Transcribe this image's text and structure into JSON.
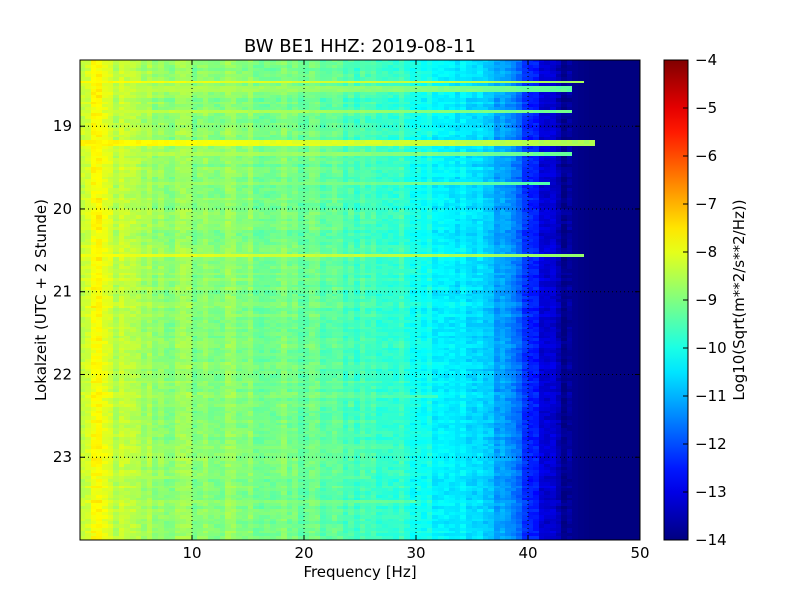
{
  "chart_data": {
    "type": "heatmap",
    "title": "BW BE1 HHZ: 2019-08-11",
    "xlabel": "Frequency [Hz]",
    "ylabel": "Lokalzeit (UTC + 2 Stunde)",
    "xlim": [
      0,
      50
    ],
    "ylim": [
      18.2,
      24.0
    ],
    "y_inverted": true,
    "x_ticks": [
      10,
      20,
      30,
      40,
      50
    ],
    "x_tick_labels": [
      "10",
      "20",
      "30",
      "40",
      "50"
    ],
    "y_ticks": [
      19,
      20,
      21,
      22,
      23
    ],
    "y_tick_labels": [
      "19",
      "20",
      "21",
      "22",
      "23"
    ],
    "grid": true,
    "colormap": "jet",
    "colorbar": {
      "label": "Log10(Sqrt(m**2/s**2/Hz))",
      "range": [
        -14,
        -4
      ],
      "ticks": [
        -4,
        -5,
        -6,
        -7,
        -8,
        -9,
        -10,
        -11,
        -12,
        -13,
        -14
      ],
      "tick_labels": [
        "−4",
        "−5",
        "−6",
        "−7",
        "−8",
        "−9",
        "−10",
        "−11",
        "−12",
        "−13",
        "−14"
      ]
    },
    "spectral_profile": {
      "frequency_hz": [
        0.5,
        1,
        2,
        3,
        5,
        8,
        12,
        16,
        20,
        25,
        30,
        33,
        35,
        37,
        38.5,
        40,
        41.5,
        43,
        44.5,
        46,
        50
      ],
      "level_log10": [
        -8.4,
        -7.8,
        -8.0,
        -8.3,
        -8.6,
        -8.8,
        -8.9,
        -9.0,
        -9.2,
        -9.5,
        -9.9,
        -10.3,
        -10.6,
        -10.9,
        -11.3,
        -12.3,
        -13.1,
        -13.6,
        -13.9,
        -14.0,
        -14.0
      ]
    },
    "narrowband_line": {
      "start": {
        "frequency_hz": 34.5,
        "time_h": 18.2
      },
      "end": {
        "frequency_hz": 33.6,
        "time_h": 24.0
      },
      "level_log10": -10.5
    },
    "events": [
      {
        "time_h": 18.47,
        "level_log10": -7.7,
        "max_frequency_hz": 45
      },
      {
        "time_h": 18.57,
        "level_log10": -8.3,
        "max_frequency_hz": 44
      },
      {
        "time_h": 18.83,
        "level_log10": -8.2,
        "max_frequency_hz": 44
      },
      {
        "time_h": 19.21,
        "level_log10": -7.6,
        "max_frequency_hz": 46
      },
      {
        "time_h": 19.35,
        "level_log10": -8.3,
        "max_frequency_hz": 44
      },
      {
        "time_h": 19.7,
        "level_log10": -8.5,
        "max_frequency_hz": 42
      },
      {
        "time_h": 20.57,
        "level_log10": -7.8,
        "max_frequency_hz": 45
      },
      {
        "time_h": 20.75,
        "level_log10": -8.8,
        "max_frequency_hz": 30
      },
      {
        "time_h": 22.27,
        "level_log10": -8.6,
        "max_frequency_hz": 32
      },
      {
        "time_h": 22.88,
        "level_log10": -8.5,
        "max_frequency_hz": 28
      },
      {
        "time_h": 23.25,
        "level_log10": -8.4,
        "max_frequency_hz": 26
      },
      {
        "time_h": 23.55,
        "level_log10": -8.4,
        "max_frequency_hz": 30
      }
    ]
  }
}
